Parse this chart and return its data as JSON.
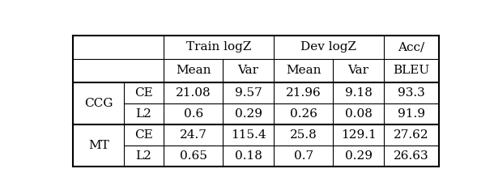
{
  "rows": [
    [
      "CCG",
      "CE",
      "21.08",
      "9.57",
      "21.96",
      "9.18",
      "93.3"
    ],
    [
      "CCG",
      "L2",
      "0.6",
      "0.29",
      "0.26",
      "0.08",
      "91.9"
    ],
    [
      "MT",
      "CE",
      "24.7",
      "115.4",
      "25.8",
      "129.1",
      "27.62"
    ],
    [
      "MT",
      "L2",
      "0.65",
      "0.18",
      "0.7",
      "0.29",
      "26.63"
    ]
  ],
  "figsize": [
    6.1,
    2.4
  ],
  "dpi": 100,
  "font_size": 11
}
